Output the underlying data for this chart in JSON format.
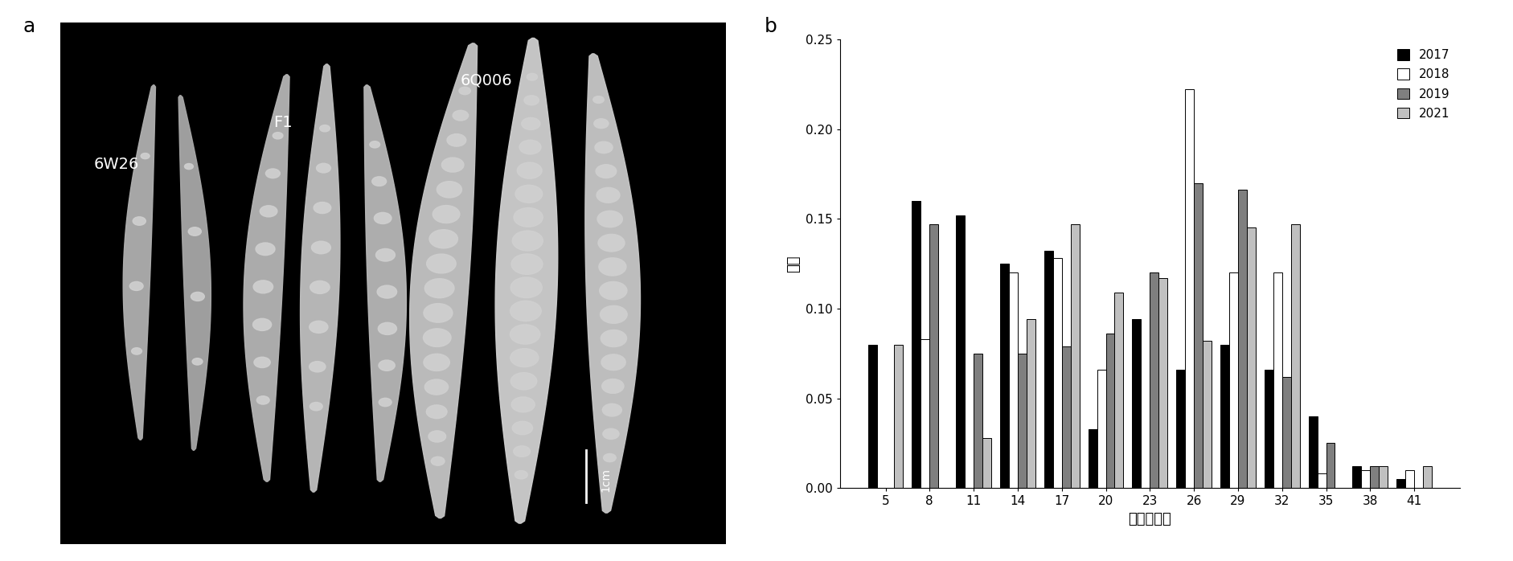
{
  "categories": [
    5,
    8,
    11,
    14,
    17,
    20,
    23,
    26,
    29,
    32,
    35,
    38,
    41
  ],
  "series": {
    "2017": [
      0.08,
      0.16,
      0.152,
      0.125,
      0.132,
      0.033,
      0.094,
      0.066,
      0.08,
      0.066,
      0.04,
      0.012,
      0.005
    ],
    "2018": [
      0.0,
      0.083,
      0.0,
      0.12,
      0.128,
      0.066,
      0.0,
      0.222,
      0.12,
      0.12,
      0.008,
      0.01,
      0.01
    ],
    "2019": [
      0.0,
      0.147,
      0.075,
      0.075,
      0.079,
      0.086,
      0.12,
      0.17,
      0.166,
      0.062,
      0.025,
      0.012,
      0.0
    ],
    "2021": [
      0.08,
      0.0,
      0.028,
      0.094,
      0.147,
      0.109,
      0.117,
      0.082,
      0.145,
      0.147,
      0.0,
      0.012,
      0.012
    ]
  },
  "bar_colors": {
    "2017": "#000000",
    "2018": "#ffffff",
    "2019": "#7f7f7f",
    "2021": "#c0c0c0"
  },
  "ylabel": "频率",
  "xlabel": "每角果粒数",
  "ylim": [
    0,
    0.25
  ],
  "yticks": [
    0.0,
    0.05,
    0.1,
    0.15,
    0.2,
    0.25
  ],
  "series_names": [
    "2017",
    "2018",
    "2019",
    "2021"
  ],
  "label_a": "a",
  "label_b": "b",
  "panel_labels_6w26": "6W26",
  "panel_labels_f1": "F1",
  "panel_labels_6q006": "6Q006",
  "scale_label": "1cm"
}
